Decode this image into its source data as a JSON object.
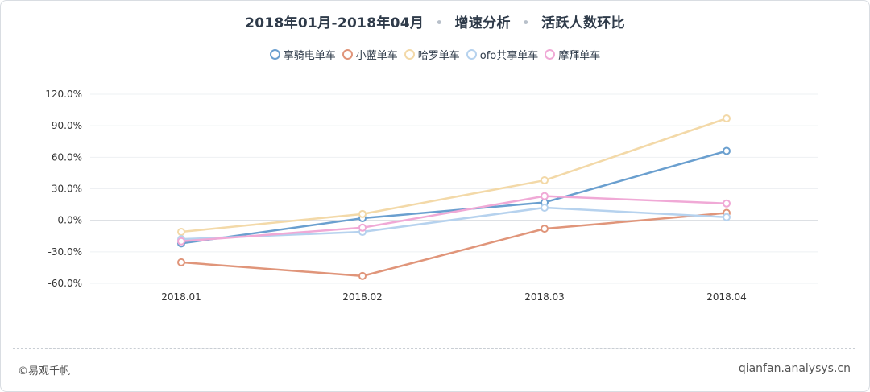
{
  "header": {
    "period": "2018年01月-2018年04月",
    "section": "增速分析",
    "metric": "活跃人数环比",
    "separator": "•"
  },
  "footer": {
    "copyright": "©易观千帆",
    "site": "qianfan.analysys.cn"
  },
  "chart_data": {
    "type": "line",
    "title": "2018年01月-2018年04月 • 增速分析 • 活跃人数环比",
    "categories": [
      "2018.01",
      "2018.02",
      "2018.03",
      "2018.04"
    ],
    "y_ticks": [
      "120.0%",
      "90.0%",
      "60.0%",
      "30.0%",
      "0.0%",
      "-30.0%",
      "-60.0%"
    ],
    "y_tick_values": [
      120,
      90,
      60,
      30,
      0,
      -30,
      -60
    ],
    "ylim": [
      -60,
      120
    ],
    "y_unit": "%",
    "grid": true,
    "legend_position": "top-center",
    "series": [
      {
        "name": "享骑电单车",
        "color": "#6a9fcf",
        "values": [
          -22,
          2,
          17,
          66
        ]
      },
      {
        "name": "小蓝单车",
        "color": "#e0957a",
        "values": [
          -40,
          -53,
          -8,
          7
        ]
      },
      {
        "name": "哈罗单车",
        "color": "#f3d9a8",
        "values": [
          -11,
          6,
          38,
          97
        ]
      },
      {
        "name": "ofo共享单车",
        "color": "#b6d2ee",
        "values": [
          -18,
          -11,
          12,
          3
        ]
      },
      {
        "name": "摩拜单车",
        "color": "#f0a9d6",
        "values": [
          -20,
          -7,
          23,
          16
        ]
      }
    ]
  }
}
